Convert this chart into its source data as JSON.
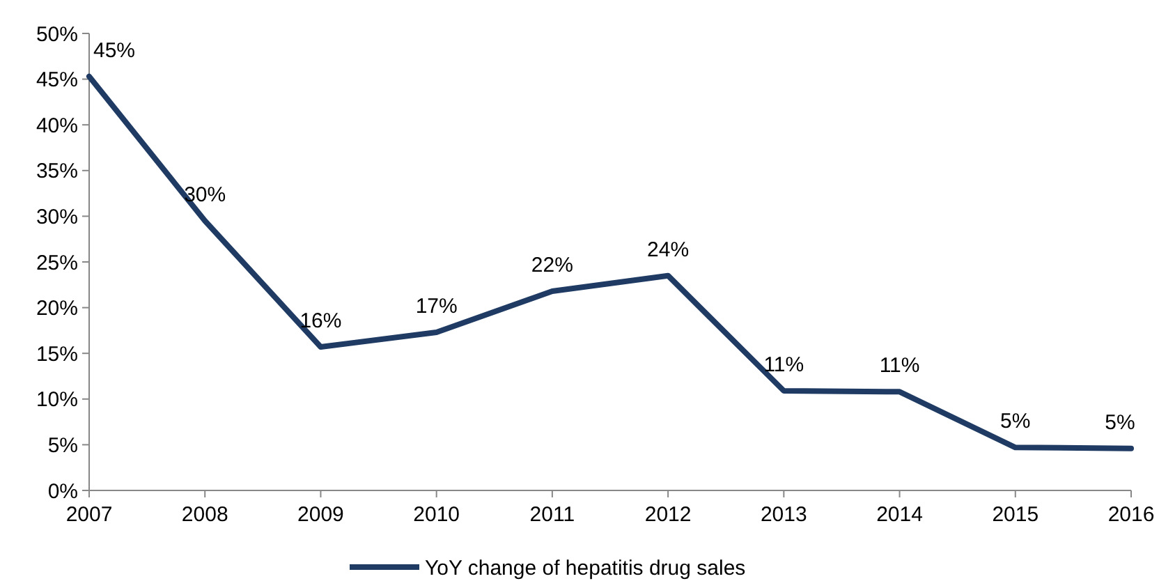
{
  "chart_data": {
    "type": "line",
    "categories": [
      "2007",
      "2008",
      "2009",
      "2010",
      "2011",
      "2012",
      "2013",
      "2014",
      "2015",
      "2016"
    ],
    "series": [
      {
        "name": "YoY change of hepatitis drug sales",
        "color": "#1f3b63",
        "values": [
          45.3,
          29.5,
          15.7,
          17.3,
          21.8,
          23.5,
          10.9,
          10.8,
          4.7,
          4.6
        ],
        "value_labels": [
          "45%",
          "30%",
          "16%",
          "17%",
          "22%",
          "24%",
          "11%",
          "11%",
          "5%",
          "5%"
        ]
      }
    ],
    "ylim": [
      0,
      50
    ],
    "yticks": [
      {
        "value": 0,
        "label": "0%"
      },
      {
        "value": 5,
        "label": "5%"
      },
      {
        "value": 10,
        "label": "10%"
      },
      {
        "value": 15,
        "label": "15%"
      },
      {
        "value": 20,
        "label": "20%"
      },
      {
        "value": 25,
        "label": "25%"
      },
      {
        "value": 30,
        "label": "30%"
      },
      {
        "value": 35,
        "label": "35%"
      },
      {
        "value": 40,
        "label": "40%"
      },
      {
        "value": 45,
        "label": "45%"
      },
      {
        "value": 50,
        "label": "50%"
      }
    ],
    "grid": false,
    "legend": "bottom",
    "marker": "none",
    "line_style": "solid"
  }
}
